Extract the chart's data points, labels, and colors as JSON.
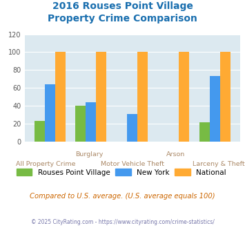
{
  "title_line1": "2016 Rouses Point Village",
  "title_line2": "Property Crime Comparison",
  "title_color": "#1a6faf",
  "cat_labels_top": [
    "",
    "Burglary",
    "",
    "Arson",
    ""
  ],
  "cat_labels_bottom": [
    "All Property Crime",
    "",
    "Motor Vehicle Theft",
    "",
    "Larceny & Theft"
  ],
  "rouses": [
    23,
    40,
    0,
    0,
    21
  ],
  "newyork": [
    64,
    44,
    31,
    0,
    73
  ],
  "national": [
    100,
    100,
    100,
    100,
    100
  ],
  "colors_rouses": "#77bb44",
  "colors_newyork": "#4499ee",
  "colors_national": "#ffaa33",
  "ylim": [
    0,
    120
  ],
  "yticks": [
    0,
    20,
    40,
    60,
    80,
    100,
    120
  ],
  "plot_bg": "#dce9f0",
  "legend_labels": [
    "Rouses Point Village",
    "New York",
    "National"
  ],
  "note": "Compared to U.S. average. (U.S. average equals 100)",
  "footer": "© 2025 CityRating.com - https://www.cityrating.com/crime-statistics/",
  "note_color": "#cc6600",
  "footer_color": "#7777aa",
  "xlabel_top_color": "#aa8866",
  "xlabel_bot_color": "#aa8866"
}
